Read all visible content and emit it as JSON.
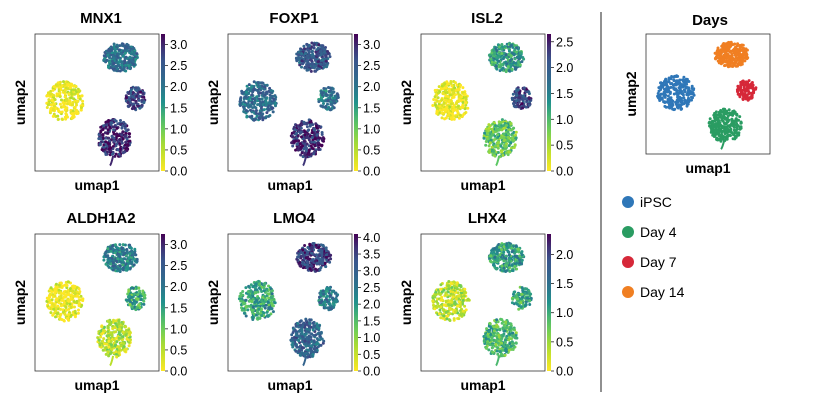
{
  "chart_data": [
    {
      "type": "scatter",
      "subtype": "umap-feature-plot",
      "title": "MNX1",
      "xlabel": "umap1",
      "ylabel": "umap2",
      "colorbar": {
        "colormap": "viridis_r",
        "ticks": [
          "0.0",
          "0.5",
          "1.0",
          "1.5",
          "2.0",
          "2.5",
          "3.0"
        ],
        "range": [
          0,
          3.25
        ]
      },
      "cluster_values": {
        "iPSC": 0.05,
        "Day 4": 3.0,
        "Day 7": 2.7,
        "Day 14": 2.1
      }
    },
    {
      "type": "scatter",
      "subtype": "umap-feature-plot",
      "title": "FOXP1",
      "xlabel": "umap1",
      "ylabel": "umap2",
      "colorbar": {
        "colormap": "viridis_r",
        "ticks": [
          "0.0",
          "0.5",
          "1.0",
          "1.5",
          "2.0",
          "2.5",
          "3.0"
        ],
        "range": [
          0,
          3.25
        ]
      },
      "cluster_values": {
        "iPSC": 2.2,
        "Day 4": 2.9,
        "Day 7": 2.0,
        "Day 14": 2.5
      }
    },
    {
      "type": "scatter",
      "subtype": "umap-feature-plot",
      "title": "ISL2",
      "xlabel": "umap1",
      "ylabel": "umap2",
      "colorbar": {
        "colormap": "viridis_r",
        "ticks": [
          "0.0",
          "0.5",
          "1.0",
          "1.5",
          "2.0",
          "2.5"
        ],
        "range": [
          0,
          2.65
        ]
      },
      "cluster_values": {
        "iPSC": 0.05,
        "Day 4": 0.9,
        "Day 7": 2.2,
        "Day 14": 1.3
      }
    },
    {
      "type": "scatter",
      "subtype": "umap-feature-plot",
      "title": "ALDH1A2",
      "xlabel": "umap1",
      "ylabel": "umap2",
      "colorbar": {
        "colormap": "viridis_r",
        "ticks": [
          "0.0",
          "0.5",
          "1.0",
          "1.5",
          "2.0",
          "2.5",
          "3.0"
        ],
        "range": [
          0,
          3.25
        ]
      },
      "cluster_values": {
        "iPSC": 0.05,
        "Day 4": 0.5,
        "Day 7": 1.4,
        "Day 14": 1.9
      }
    },
    {
      "type": "scatter",
      "subtype": "umap-feature-plot",
      "title": "LMO4",
      "xlabel": "umap1",
      "ylabel": "umap2",
      "colorbar": {
        "colormap": "viridis_r",
        "ticks": [
          "0.0",
          "0.5",
          "1.0",
          "1.5",
          "2.0",
          "2.5",
          "3.0",
          "3.5",
          "4.0"
        ],
        "range": [
          0,
          4.1
        ]
      },
      "cluster_values": {
        "iPSC": 1.9,
        "Day 4": 2.9,
        "Day 7": 2.5,
        "Day 14": 3.5
      }
    },
    {
      "type": "scatter",
      "subtype": "umap-feature-plot",
      "title": "LHX4",
      "xlabel": "umap1",
      "ylabel": "umap2",
      "colorbar": {
        "colormap": "viridis_r",
        "ticks": [
          "0.0",
          "0.5",
          "1.0",
          "1.5",
          "2.0"
        ],
        "range": [
          0,
          2.35
        ]
      },
      "cluster_values": {
        "iPSC": 0.35,
        "Day 4": 0.9,
        "Day 7": 1.0,
        "Day 14": 1.1
      }
    },
    {
      "type": "scatter",
      "subtype": "umap-cluster-plot",
      "title": "Days",
      "xlabel": "umap1",
      "ylabel": "umap2",
      "legend_placement": "bottom",
      "series": [
        {
          "name": "iPSC",
          "color": "#2f77b8"
        },
        {
          "name": "Day 4",
          "color": "#2a9c62"
        },
        {
          "name": "Day 7",
          "color": "#d62839"
        },
        {
          "name": "Day 14",
          "color": "#f07f22"
        }
      ]
    }
  ]
}
